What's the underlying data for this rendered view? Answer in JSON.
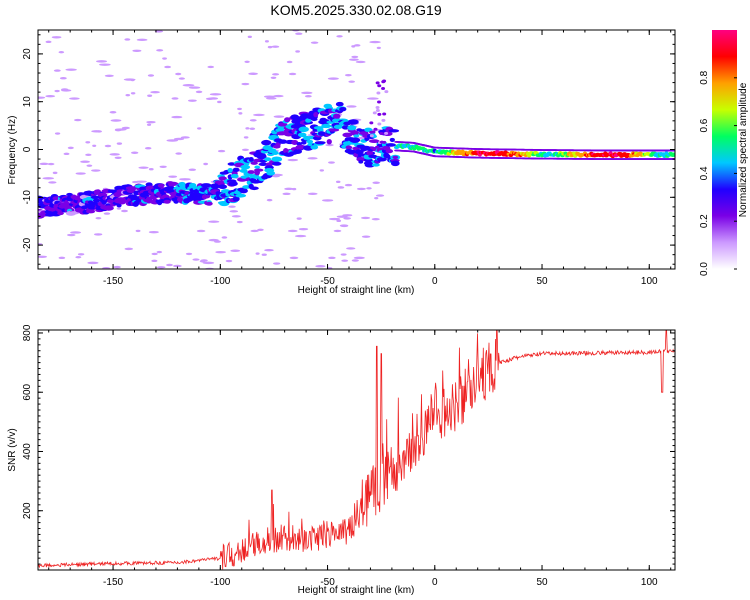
{
  "title": "KOM5.2025.330.02.08.G19",
  "chart_data": [
    {
      "type": "heatmap",
      "xlabel": "Height of straight line (km)",
      "ylabel": "Frequency (Hz)",
      "xlim": [
        -185,
        112
      ],
      "ylim": [
        -25,
        25
      ],
      "xticks": [
        -150,
        -100,
        -50,
        0,
        50,
        100
      ],
      "yticks": [
        -20,
        -10,
        0,
        10,
        20
      ],
      "ridge_x": [
        -185,
        -160,
        -140,
        -120,
        -105,
        -95,
        -80,
        -70,
        -55,
        -45,
        -38,
        -30,
        -22,
        -10,
        0,
        20,
        50,
        80,
        112
      ],
      "ridge_freq": [
        -12,
        -11,
        -9.5,
        -9,
        -9.5,
        -7,
        -3,
        2.5,
        4.5,
        6,
        2,
        0.5,
        0.8,
        0.5,
        -0.5,
        -0.8,
        -1.0,
        -1.1,
        -1.1
      ],
      "colorbar": {
        "label": "Normalized spectral amplitude",
        "ticks": [
          0.0,
          0.2,
          0.4,
          0.6,
          0.8
        ],
        "colors": [
          "#ffffff",
          "#cc99ff",
          "#7a00e6",
          "#2000ff",
          "#00c8ff",
          "#00ff60",
          "#c8ff00",
          "#ffa000",
          "#ff0000",
          "#ff0080"
        ]
      }
    },
    {
      "type": "line",
      "xlabel": "Height of straight line (km)",
      "ylabel": "SNR (v/v)",
      "xlim": [
        -185,
        112
      ],
      "ylim": [
        0,
        810
      ],
      "xticks": [
        -150,
        -100,
        -50,
        0,
        50,
        100
      ],
      "yticks": [
        200,
        400,
        600,
        800
      ],
      "line_color": "#ee2222",
      "envelope_x": [
        -185,
        -150,
        -120,
        -100,
        -90,
        -80,
        -60,
        -40,
        -30,
        -20,
        -10,
        0,
        10,
        20,
        30,
        40,
        50,
        100,
        112
      ],
      "envelope_y": [
        15,
        22,
        25,
        40,
        60,
        100,
        100,
        130,
        250,
        330,
        430,
        520,
        560,
        640,
        700,
        720,
        730,
        735,
        740
      ],
      "spikes": [
        {
          "x": -76,
          "y": 270
        },
        {
          "x": -27,
          "y": 755
        },
        {
          "x": -25,
          "y": 730
        },
        {
          "x": 106,
          "y": 600
        },
        {
          "x": 108,
          "y": 810
        }
      ]
    }
  ]
}
